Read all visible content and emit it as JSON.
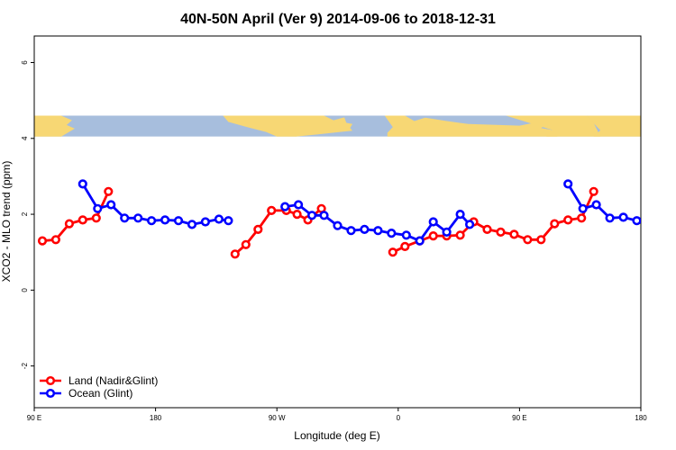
{
  "chart_data": {
    "type": "line",
    "title": "40N-50N April (Ver 9)   2014-09-06 to 2018-12-31",
    "xlabel": "Longitude (deg E)",
    "ylabel": "XCO2 - MLO trend (ppm)",
    "xlim": [
      90,
      540
    ],
    "ylim": [
      -3.1,
      6.7
    ],
    "x_ticks": [
      {
        "value": 90,
        "label": "90 E"
      },
      {
        "value": 180,
        "label": "180"
      },
      {
        "value": 270,
        "label": "90 W"
      },
      {
        "value": 360,
        "label": "0"
      },
      {
        "value": 450,
        "label": "90 E"
      },
      {
        "value": 540,
        "label": "180"
      }
    ],
    "y_ticks": [
      {
        "value": -2,
        "label": "-2"
      },
      {
        "value": 0,
        "label": "0"
      },
      {
        "value": 2,
        "label": "2"
      },
      {
        "value": 4,
        "label": "4"
      },
      {
        "value": 6,
        "label": "6"
      }
    ],
    "map_band": {
      "y_min": 4.05,
      "y_max": 4.6,
      "land_color": "#f7d774",
      "ocean_color": "#a7bedd"
    },
    "legend": {
      "position": "bottom-left"
    },
    "series": [
      {
        "name": "Land (Nadir&Glint)",
        "color": "#ff0000",
        "segments": [
          [
            [
              96,
              1.3
            ],
            [
              106,
              1.33
            ],
            [
              116,
              1.75
            ],
            [
              126,
              1.85
            ],
            [
              136,
              1.9
            ],
            [
              145,
              2.6
            ]
          ],
          [
            [
              239,
              0.95
            ],
            [
              247,
              1.2
            ],
            [
              256,
              1.6
            ],
            [
              266,
              2.1
            ],
            [
              277,
              2.1
            ],
            [
              285,
              2.0
            ],
            [
              293,
              1.85
            ],
            [
              303,
              2.15
            ]
          ],
          [
            [
              356,
              1.0
            ],
            [
              365,
              1.15
            ],
            [
              376,
              1.3
            ],
            [
              386,
              1.43
            ],
            [
              396,
              1.43
            ],
            [
              406,
              1.45
            ],
            [
              416,
              1.8
            ],
            [
              426,
              1.6
            ],
            [
              436,
              1.53
            ],
            [
              446,
              1.47
            ],
            [
              456,
              1.33
            ],
            [
              466,
              1.33
            ],
            [
              476,
              1.75
            ],
            [
              486,
              1.85
            ],
            [
              496,
              1.9
            ],
            [
              505,
              2.6
            ]
          ]
        ]
      },
      {
        "name": "Ocean (Glint)",
        "color": "#0000ff",
        "segments": [
          [
            [
              126,
              2.8
            ],
            [
              137,
              2.15
            ],
            [
              147,
              2.25
            ],
            [
              157,
              1.9
            ],
            [
              167,
              1.9
            ],
            [
              177,
              1.83
            ],
            [
              187,
              1.85
            ],
            [
              197,
              1.83
            ],
            [
              207,
              1.73
            ],
            [
              217,
              1.8
            ],
            [
              227,
              1.87
            ],
            [
              234,
              1.83
            ]
          ],
          [
            [
              276,
              2.2
            ],
            [
              286,
              2.25
            ],
            [
              296,
              1.97
            ],
            [
              305,
              1.97
            ],
            [
              315,
              1.7
            ],
            [
              325,
              1.57
            ],
            [
              335,
              1.6
            ],
            [
              345,
              1.57
            ],
            [
              355,
              1.5
            ],
            [
              366,
              1.45
            ],
            [
              376,
              1.3
            ],
            [
              386,
              1.8
            ],
            [
              396,
              1.53
            ],
            [
              406,
              2.0
            ],
            [
              413,
              1.73
            ]
          ],
          [
            [
              486,
              2.8
            ],
            [
              497,
              2.15
            ],
            [
              507,
              2.25
            ],
            [
              517,
              1.9
            ],
            [
              527,
              1.92
            ],
            [
              537,
              1.83
            ]
          ]
        ]
      }
    ]
  }
}
